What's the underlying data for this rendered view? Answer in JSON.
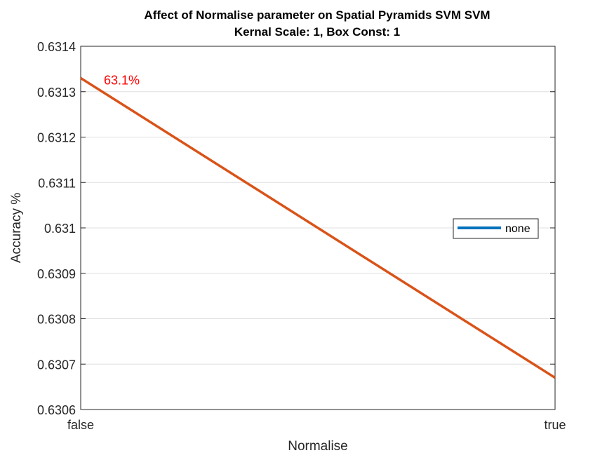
{
  "chart_data": {
    "type": "line",
    "title": "Affect of Normalise parameter on Spatial Pyramids SVM SVM",
    "subtitle": "Kernal Scale: 1, Box Const: 1",
    "xlabel": "Normalise",
    "ylabel": "Accuracy %",
    "categories": [
      "false",
      "true"
    ],
    "ylim": [
      0.6306,
      0.6314
    ],
    "yticks": [
      "0.6306",
      "0.6307",
      "0.6308",
      "0.6309",
      "0.631",
      "0.6311",
      "0.6312",
      "0.6313",
      "0.6314"
    ],
    "grid": true,
    "legend": {
      "position": "right",
      "entries": [
        {
          "label": "none",
          "color": "#0072bd"
        }
      ]
    },
    "series": [
      {
        "color": "#d95319",
        "values": [
          0.63133,
          0.63067
        ]
      }
    ],
    "annotations": [
      {
        "text": "63.1%",
        "category": "false",
        "y": 0.63133,
        "color": "#ff0000"
      }
    ]
  }
}
